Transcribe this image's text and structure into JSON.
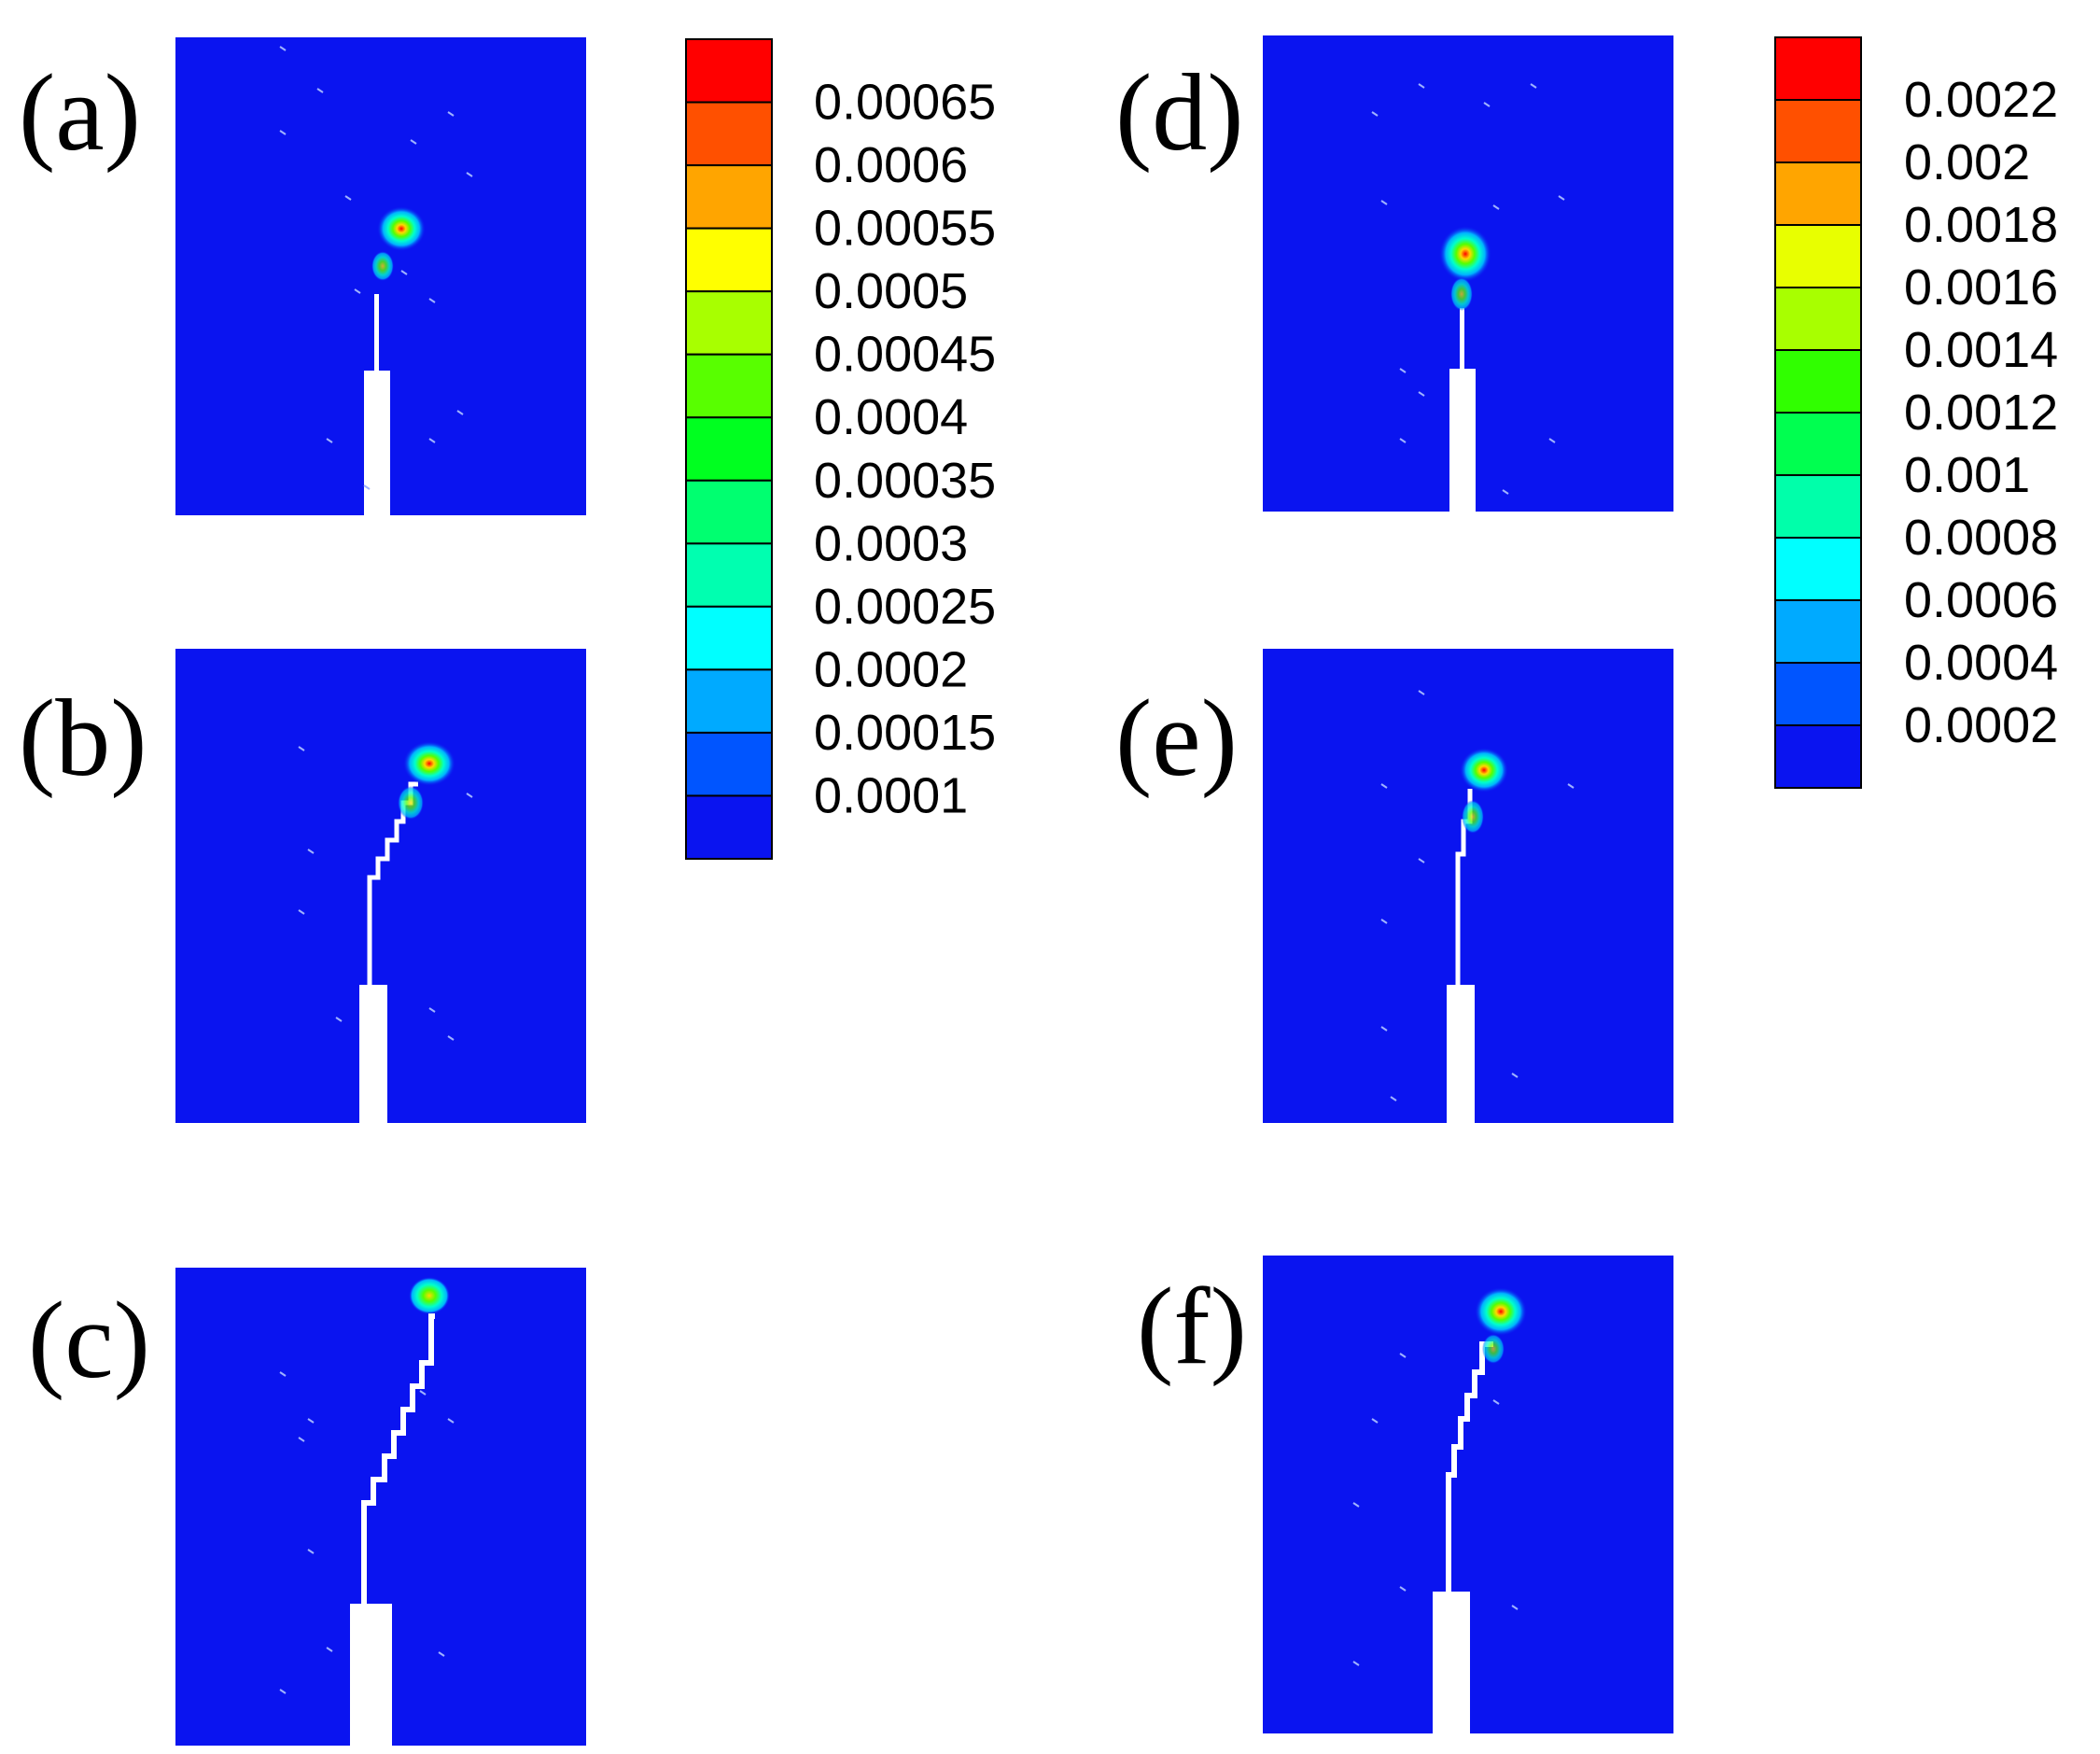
{
  "colors": {
    "field": "#0a14f0",
    "background": "#ffffff",
    "crack": "#ffffff",
    "hotspot_scale": [
      "#00b4ff",
      "#00ffcc",
      "#00ff44",
      "#c8ff00",
      "#ffd800",
      "#ff6600",
      "#ff0000"
    ]
  },
  "colorbar_left": {
    "labels": [
      "0.00065",
      "0.0006",
      "0.00055",
      "0.0005",
      "0.00045",
      "0.0004",
      "0.00035",
      "0.0003",
      "0.00025",
      "0.0002",
      "0.00015",
      "0.0001"
    ],
    "swatches": [
      "#ff0000",
      "#ff5000",
      "#ffa500",
      "#ffff00",
      "#a8ff00",
      "#58ff00",
      "#00ff20",
      "#00ff70",
      "#00ffb0",
      "#00ffff",
      "#00aaff",
      "#0055ff",
      "#0a14f0"
    ]
  },
  "colorbar_right": {
    "labels": [
      "0.0022",
      "0.002",
      "0.0018",
      "0.0016",
      "0.0014",
      "0.0012",
      "0.001",
      "0.0008",
      "0.0006",
      "0.0004",
      "0.0002"
    ],
    "swatches": [
      "#ff0000",
      "#ff5000",
      "#ffa500",
      "#e8ff00",
      "#a8ff00",
      "#30ff00",
      "#00ff50",
      "#00ffaa",
      "#00ffff",
      "#00aaff",
      "#0055ff",
      "#0a14f0"
    ]
  },
  "panels": [
    {
      "id": "a",
      "label": "(a)"
    },
    {
      "id": "b",
      "label": "(b)"
    },
    {
      "id": "c",
      "label": "(c)"
    },
    {
      "id": "d",
      "label": "(d)"
    },
    {
      "id": "e",
      "label": "(e)"
    },
    {
      "id": "f",
      "label": "(f)"
    }
  ]
}
